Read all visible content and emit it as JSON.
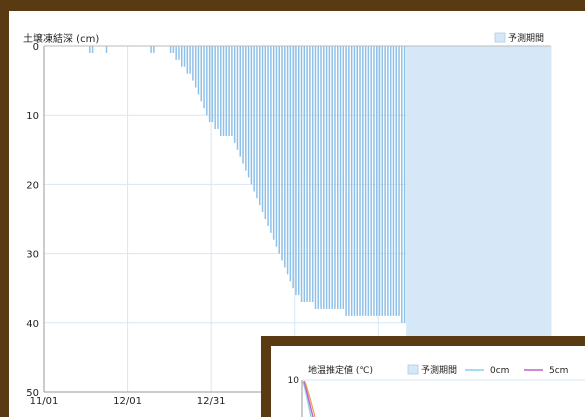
{
  "chart_data": [
    {
      "type": "bar",
      "title": "土壌凍結深 (cm)",
      "legend": [
        "予測期間"
      ],
      "yticks": [
        "0",
        "10",
        "20",
        "30",
        "40",
        "50"
      ],
      "ylim": [
        0,
        50
      ],
      "y_inverted": true,
      "xticks": [
        "11/01",
        "12/01",
        "12/31"
      ],
      "x_tick_days": [
        0,
        30,
        60
      ],
      "xlim": [
        0,
        182
      ],
      "forecast_start_day": 130,
      "colors": {
        "bar": "#8ec0e8",
        "forecast": "#d6e8f7",
        "grid": "#d8e6f4"
      },
      "values": [
        0,
        0,
        0,
        0,
        0,
        0,
        0,
        0,
        0,
        0,
        0,
        0,
        0,
        0,
        0,
        0,
        1,
        1,
        0,
        0,
        0,
        0,
        1,
        0,
        0,
        0,
        0,
        0,
        0,
        0,
        0,
        0,
        0,
        0,
        0,
        0,
        0,
        0,
        1,
        1,
        0,
        0,
        0,
        0,
        0,
        1,
        1,
        2,
        2,
        3,
        3,
        4,
        4,
        5,
        6,
        7,
        8,
        9,
        10,
        11,
        11,
        12,
        12,
        13,
        13,
        13,
        13,
        13,
        14,
        15,
        16,
        17,
        18,
        19,
        20,
        21,
        22,
        23,
        24,
        25,
        26,
        27,
        28,
        29,
        30,
        31,
        32,
        33,
        34,
        35,
        36,
        36,
        37,
        37,
        37,
        37,
        37,
        38,
        38,
        38,
        38,
        38,
        38,
        38,
        38,
        38,
        38,
        38,
        39,
        39,
        39,
        39,
        39,
        39,
        39,
        39,
        39,
        39,
        39,
        39,
        39,
        39,
        39,
        39,
        39,
        39,
        39,
        39,
        40,
        40
      ]
    },
    {
      "type": "line",
      "title": "地温推定値 (℃)",
      "legend": [
        "予測期間",
        "0cm",
        "5cm"
      ],
      "ytick_top": "10",
      "colors": {
        "forecast": "#d6e8f7",
        "0cm": "#88d0ee",
        "5cm": "#c060c8"
      }
    }
  ]
}
